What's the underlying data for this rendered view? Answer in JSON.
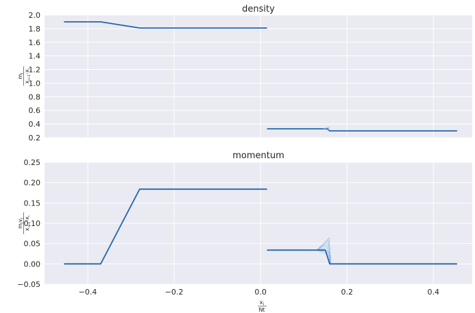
{
  "chart_data": [
    {
      "type": "line",
      "title": "density",
      "ylabel": {
        "numerator": "m",
        "numerator_sub": "i",
        "denominator": "x",
        "denominator_sub": "i+1",
        "denominator_rest": "-x",
        "denominator_rest_sub": "i"
      },
      "xlim": [
        -0.5,
        0.49
      ],
      "ylim": [
        0.2,
        2.0
      ],
      "yticks": [
        0.2,
        0.4,
        0.6,
        0.8,
        1.0,
        1.2,
        1.4,
        1.6,
        1.8,
        2.0
      ],
      "ytick_labels": [
        "0.2",
        "0.4",
        "0.6",
        "0.8",
        "1.0",
        "1.2",
        "1.4",
        "1.6",
        "1.8",
        "2.0"
      ],
      "grid": true,
      "series": [
        {
          "x": [
            -0.455,
            -0.37,
            -0.28,
            0.015
          ],
          "y": [
            1.9,
            1.9,
            1.81,
            1.81
          ]
        },
        {
          "x": [
            0.015,
            0.155,
            0.16,
            0.455
          ],
          "y": [
            0.33,
            0.33,
            0.3,
            0.3
          ]
        }
      ]
    },
    {
      "type": "line",
      "title": "momentum",
      "ylabel": {
        "numerator": "m",
        "numerator_sub": "i",
        "numerator_rest": "v",
        "numerator_rest_sub": "i",
        "denominator": "x",
        "denominator_sub": "i+1",
        "denominator_rest": "-x",
        "denominator_rest_sub": "i"
      },
      "xlabel": {
        "numerator": "x",
        "numerator_sub": "i",
        "denominator": "N",
        "denominator_rest": "t"
      },
      "xlim": [
        -0.5,
        0.49
      ],
      "ylim": [
        -0.05,
        0.25
      ],
      "yticks": [
        -0.05,
        0.0,
        0.05,
        0.1,
        0.15,
        0.2,
        0.25
      ],
      "ytick_labels": [
        "−0.05",
        "0.00",
        "0.05",
        "0.10",
        "0.15",
        "0.20",
        "0.25"
      ],
      "xticks": [
        -0.4,
        -0.2,
        0.0,
        0.2,
        0.4
      ],
      "xtick_labels": [
        "−0.4",
        "−0.2",
        "0.0",
        "0.2",
        "0.4"
      ],
      "grid": true,
      "series": [
        {
          "x": [
            -0.455,
            -0.37,
            -0.28,
            0.015
          ],
          "y": [
            0.0,
            0.0,
            0.184,
            0.184
          ]
        },
        {
          "x": [
            0.015,
            0.15,
            0.16,
            0.455
          ],
          "y": [
            0.034,
            0.034,
            0.0,
            0.0
          ]
        }
      ]
    }
  ],
  "colors": {
    "line": "#2166AC",
    "fan": "#6FA8DC",
    "plot_bg": "#EAEAF2",
    "grid": "#FFFFFF"
  }
}
